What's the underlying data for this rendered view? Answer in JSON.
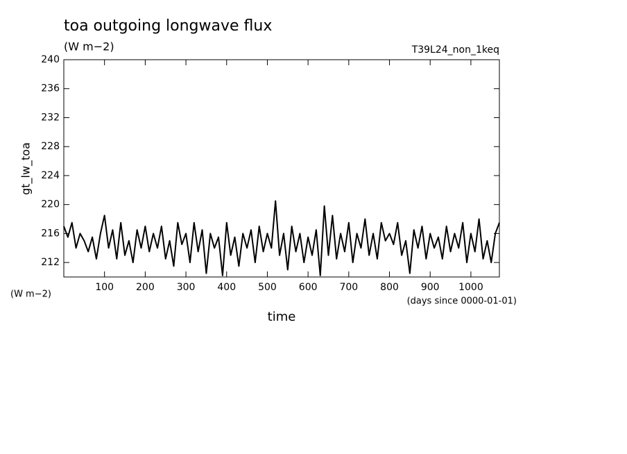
{
  "chart_data": {
    "type": "line",
    "title": "toa outgoing longwave flux",
    "subtitle": "(W m−2)",
    "annotation": "T39L24_non_1keq",
    "y_label": "gt_lw_toa",
    "y_units": "(W m−2)",
    "x_label": "time",
    "x_units": "(days since 0000-01-01)",
    "x": [
      0,
      10,
      20,
      30,
      40,
      50,
      60,
      70,
      80,
      90,
      100,
      110,
      120,
      130,
      140,
      150,
      160,
      170,
      180,
      190,
      200,
      210,
      220,
      230,
      240,
      250,
      260,
      270,
      280,
      290,
      300,
      310,
      320,
      330,
      340,
      350,
      360,
      370,
      380,
      390,
      400,
      410,
      420,
      430,
      440,
      450,
      460,
      470,
      480,
      490,
      500,
      510,
      520,
      530,
      540,
      550,
      560,
      570,
      580,
      590,
      600,
      610,
      620,
      630,
      640,
      650,
      660,
      670,
      680,
      690,
      700,
      710,
      720,
      730,
      740,
      750,
      760,
      770,
      780,
      790,
      800,
      810,
      820,
      830,
      840,
      850,
      860,
      870,
      880,
      890,
      900,
      910,
      920,
      930,
      940,
      950,
      960,
      970,
      980,
      990,
      1000,
      1010,
      1020,
      1030,
      1040,
      1050,
      1060,
      1070
    ],
    "series": [
      {
        "name": "gt_lw_toa",
        "color": "#000000",
        "values": [
          217,
          215.5,
          217.5,
          214,
          216,
          215,
          213.5,
          215.5,
          212.5,
          216,
          218.5,
          214,
          216.5,
          212.5,
          217.5,
          213,
          215,
          212,
          216.5,
          214,
          217,
          213.5,
          216,
          214,
          217,
          212.5,
          215,
          211.5,
          217.5,
          214.5,
          216,
          212,
          217.5,
          213.5,
          216.5,
          210.5,
          216,
          214,
          215.5,
          210.2,
          217.5,
          213,
          215.5,
          211.5,
          216,
          214,
          216.5,
          212,
          217,
          213.5,
          216,
          214,
          220.5,
          213,
          216,
          211,
          217,
          213.5,
          216,
          212,
          215.5,
          213,
          216.5,
          210.2,
          219.8,
          213,
          218.5,
          212.5,
          216,
          213.5,
          217.5,
          212,
          216,
          214,
          218,
          213,
          216,
          212.5,
          217.5,
          215,
          216,
          214.5,
          217.5,
          213,
          215,
          210.5,
          216.5,
          214,
          217,
          212.5,
          216,
          214,
          215.5,
          212.5,
          217,
          213.5,
          216,
          214,
          217.5,
          212,
          216,
          213.5,
          218,
          212.5,
          215,
          212,
          216,
          217.5
        ]
      }
    ],
    "xlim": [
      0,
      1070
    ],
    "ylim": [
      210,
      240
    ],
    "xticks": [
      100,
      200,
      300,
      400,
      500,
      600,
      700,
      800,
      900,
      1000
    ],
    "yticks": [
      212,
      216,
      220,
      224,
      228,
      232,
      236,
      240
    ]
  }
}
